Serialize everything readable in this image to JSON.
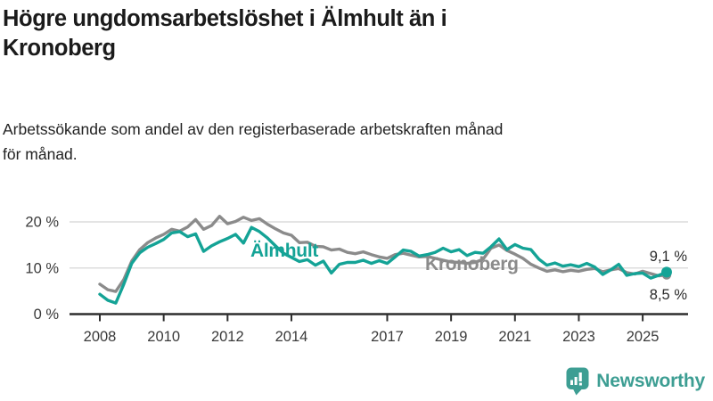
{
  "header": {
    "title_lines": [
      "Högre ungdomsarbetslöshet i Älmhult än i",
      "Kronoberg"
    ],
    "subtitle_lines": [
      "Arbetssökande som andel av den registerbaserade arbetskraften månad",
      "för månad."
    ]
  },
  "chart_data": {
    "type": "line",
    "title": "Högre ungdomsarbetslöshet i Älmhult än i Kronoberg",
    "xlabel": "",
    "ylabel": "",
    "y_unit": "%",
    "x_unit": "year (monthly data)",
    "grid": "horizontal",
    "legend": "inline-labels",
    "x_axis": {
      "ticks": [
        2008,
        2010,
        2012,
        2014,
        2017,
        2019,
        2021,
        2023,
        2025
      ],
      "tick_labels": [
        "2008",
        "2010",
        "2012",
        "2014",
        "2017",
        "2019",
        "2021",
        "2023",
        "2025"
      ],
      "range": [
        2007.5,
        2026.5
      ]
    },
    "y_axis": {
      "ticks": [
        0,
        10,
        20
      ],
      "tick_labels": [
        "0 %",
        "10 %",
        "20 %"
      ],
      "range": [
        0,
        23
      ]
    },
    "x_start": 2008.0,
    "x_step": 0.25,
    "series": [
      {
        "name": "Kronoberg",
        "color": "#8b8b8b",
        "final_label": "8,5 %",
        "final_value": 8.5,
        "values": [
          6.5,
          5.3,
          4.9,
          7.5,
          11.5,
          14.0,
          15.5,
          16.5,
          17.3,
          18.4,
          18.0,
          18.9,
          20.5,
          18.4,
          19.2,
          21.2,
          19.6,
          20.1,
          21.0,
          20.3,
          20.7,
          19.5,
          18.5,
          17.6,
          17.1,
          15.5,
          15.6,
          14.7,
          14.6,
          13.9,
          14.1,
          13.4,
          13.1,
          13.5,
          12.9,
          12.4,
          12.1,
          12.9,
          13.2,
          12.8,
          12.4,
          12.5,
          12.1,
          11.7,
          11.3,
          11.2,
          11.0,
          11.2,
          11.9,
          14.3,
          15.0,
          13.8,
          13.0,
          12.1,
          10.8,
          10.0,
          9.3,
          9.6,
          9.2,
          9.5,
          9.3,
          9.7,
          9.9,
          9.2,
          9.6,
          9.9,
          9.0,
          8.7,
          9.3,
          8.8,
          8.3,
          8.5
        ]
      },
      {
        "name": "Älmhult",
        "color": "#14a396",
        "final_label": "9,1 %",
        "final_value": 9.1,
        "values": [
          4.3,
          3.0,
          2.4,
          6.5,
          11.0,
          13.3,
          14.5,
          15.3,
          16.2,
          17.6,
          17.9,
          16.8,
          17.4,
          13.6,
          14.8,
          15.7,
          16.4,
          17.3,
          15.4,
          18.8,
          17.9,
          16.5,
          14.8,
          13.2,
          12.3,
          11.4,
          11.8,
          10.6,
          11.5,
          8.9,
          10.8,
          11.2,
          11.2,
          11.7,
          11.0,
          11.6,
          11.0,
          12.4,
          13.9,
          13.6,
          12.6,
          12.9,
          13.4,
          14.3,
          13.5,
          14.0,
          12.7,
          13.4,
          13.2,
          14.6,
          16.3,
          14.0,
          15.1,
          14.3,
          14.0,
          11.9,
          10.6,
          11.1,
          10.4,
          10.7,
          10.3,
          11.0,
          10.2,
          8.6,
          9.6,
          10.8,
          8.4,
          8.8,
          8.9,
          7.8,
          8.4,
          9.1
        ]
      }
    ]
  },
  "colors": {
    "grid": "#dcdcdc",
    "axis": "#2e2e2e",
    "tick_label": "#3a3a3a",
    "value_label": "#2b2b2b",
    "almhult": "#14a396",
    "kronoberg": "#8b8b8b",
    "logo": "#3d9e93"
  },
  "branding": {
    "logo_text": "Newsworthy",
    "logo_icon": "bar-chart-pin-icon"
  }
}
